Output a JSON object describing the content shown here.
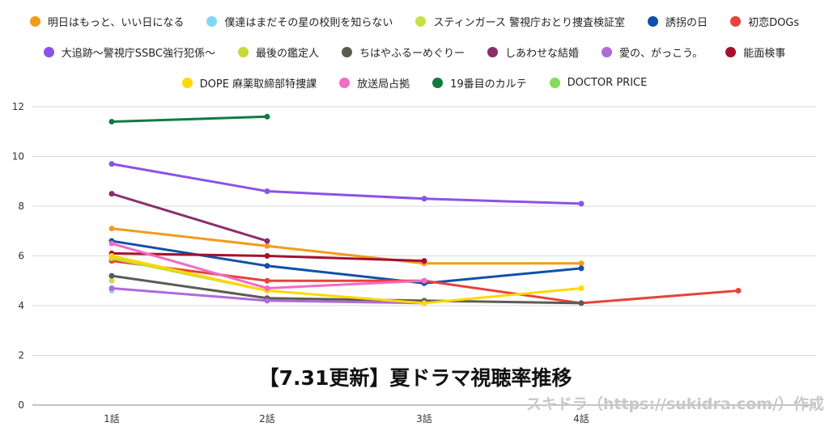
{
  "chart_data": {
    "type": "line",
    "title": "【7.31更新】夏ドラマ視聴率推移",
    "xlabel": "",
    "ylabel": "",
    "x": [
      "1話",
      "2話",
      "3話",
      "4話",
      ""
    ],
    "ylim": [
      0,
      12
    ],
    "yticks": [
      0,
      2,
      4,
      6,
      8,
      10,
      12
    ],
    "grid": true,
    "legend_position": "top",
    "watermark": "スキドラ（https://sukidra.com/）作成",
    "series": [
      {
        "name": "明日はもっと、いい日になる",
        "color": "#f29b1d",
        "values": [
          7.1,
          6.4,
          5.7,
          5.7,
          null
        ]
      },
      {
        "name": "僕達はまだその星の校則を知らない",
        "color": "#7fd8f2",
        "values": [
          4.6,
          null,
          null,
          null,
          null
        ]
      },
      {
        "name": "スティンガース 警視庁おとり捜査検証室",
        "color": "#c9de45",
        "values": [
          5.0,
          null,
          null,
          null,
          null
        ]
      },
      {
        "name": "誘拐の日",
        "color": "#1050a8",
        "values": [
          6.6,
          5.6,
          4.9,
          5.5,
          null
        ]
      },
      {
        "name": "初恋DOGs",
        "color": "#e8423c",
        "values": [
          5.8,
          5.0,
          5.0,
          4.1,
          4.6
        ]
      },
      {
        "name": "大追跡〜警視庁SSBC強行犯係〜",
        "color": "#8b52e6",
        "values": [
          9.7,
          8.6,
          8.3,
          8.1,
          null
        ]
      },
      {
        "name": "最後の鑑定人",
        "color": "#c6d93a",
        "values": [
          5.9,
          4.6,
          null,
          null,
          null
        ]
      },
      {
        "name": "ちはやふるーめぐりー",
        "color": "#5c5c55",
        "values": [
          5.2,
          4.3,
          4.2,
          4.1,
          null
        ]
      },
      {
        "name": "しあわせな結婚",
        "color": "#8a2e6e",
        "values": [
          8.5,
          6.6,
          null,
          null,
          null
        ]
      },
      {
        "name": "愛の、がっこう。",
        "color": "#b06ad9",
        "values": [
          4.7,
          4.2,
          4.1,
          null,
          null
        ]
      },
      {
        "name": "能面検事",
        "color": "#a3122e",
        "values": [
          6.1,
          6.0,
          5.8,
          null,
          null
        ]
      },
      {
        "name": "DOPE 麻薬取締部特捜課",
        "color": "#ffd800",
        "values": [
          6.0,
          4.6,
          4.1,
          4.7,
          null
        ]
      },
      {
        "name": "放送局占拠",
        "color": "#f26bc4",
        "values": [
          6.5,
          4.7,
          5.0,
          null,
          null
        ]
      },
      {
        "name": "19番目のカルテ",
        "color": "#127a42",
        "values": [
          11.4,
          11.6,
          null,
          null,
          null
        ]
      },
      {
        "name": "DOCTOR PRICE",
        "color": "#86da5c",
        "values": [
          null,
          null,
          null,
          null,
          null
        ]
      }
    ]
  }
}
